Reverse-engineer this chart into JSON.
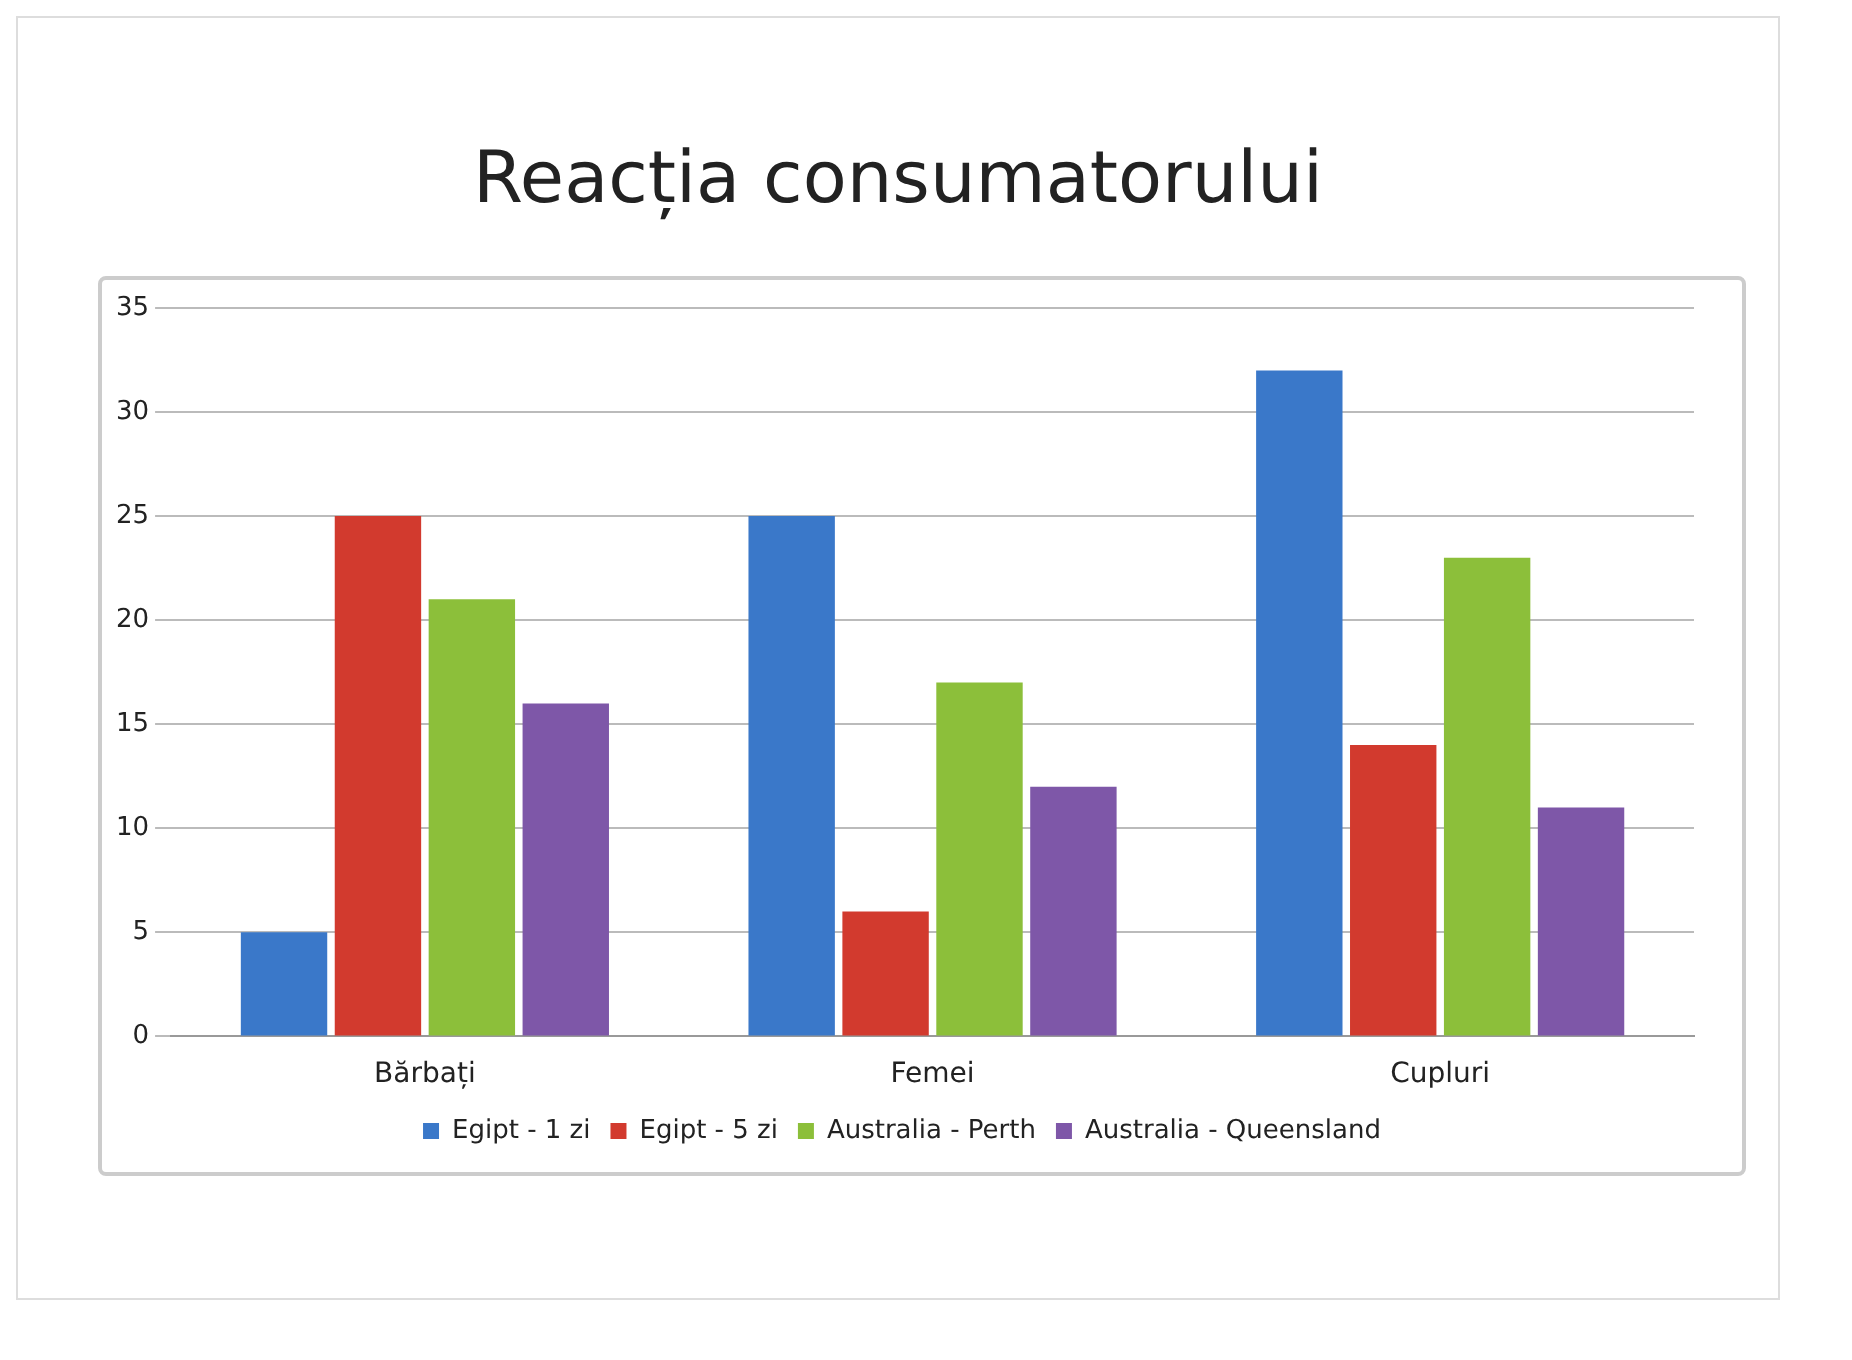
{
  "chart_data": {
    "type": "bar",
    "title": "Reacția consumatorului",
    "categories": [
      "Bărbați",
      "Femei",
      "Cupluri"
    ],
    "series": [
      {
        "name": "Egipt - 1 zi",
        "color": "#3a78c9",
        "values": [
          5,
          25,
          32
        ]
      },
      {
        "name": "Egipt - 5 zi",
        "color": "#d23a2e",
        "values": [
          25,
          6,
          14
        ]
      },
      {
        "name": "Australia - Perth",
        "color": "#8cbf3a",
        "values": [
          21,
          17,
          23
        ]
      },
      {
        "name": "Australia - Queensland",
        "color": "#7e57a8",
        "values": [
          16,
          12,
          11
        ]
      }
    ],
    "ylim": [
      0,
      35
    ],
    "yticks": [
      0,
      5,
      10,
      15,
      20,
      25,
      30,
      35
    ],
    "grid": "y",
    "legend": "bottom"
  }
}
